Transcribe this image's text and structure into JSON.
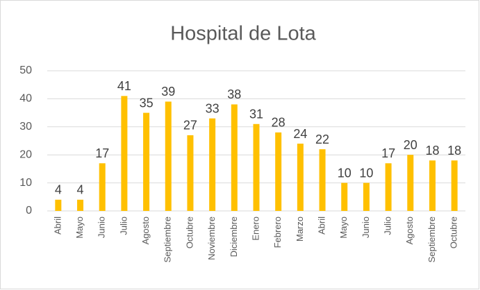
{
  "chart_data": {
    "type": "bar",
    "title": "Hospital de Lota",
    "categories": [
      "Abril",
      "Mayo",
      "Junio",
      "Julio",
      "Agosto",
      "Septiembre",
      "Octubre",
      "Noviembre",
      "Diciembre",
      "Enero",
      "Febrero",
      "Marzo",
      "Abril",
      "Mayo",
      "Junio",
      "Julio",
      "Agosto",
      "Septiembre",
      "Octubre"
    ],
    "values": [
      4,
      4,
      17,
      41,
      35,
      39,
      27,
      33,
      38,
      31,
      28,
      24,
      22,
      10,
      10,
      17,
      20,
      18,
      18
    ],
    "color": "#ffc000",
    "ylim": [
      0,
      50
    ],
    "yticks": [
      0,
      10,
      20,
      30,
      40,
      50
    ],
    "grid": true
  }
}
